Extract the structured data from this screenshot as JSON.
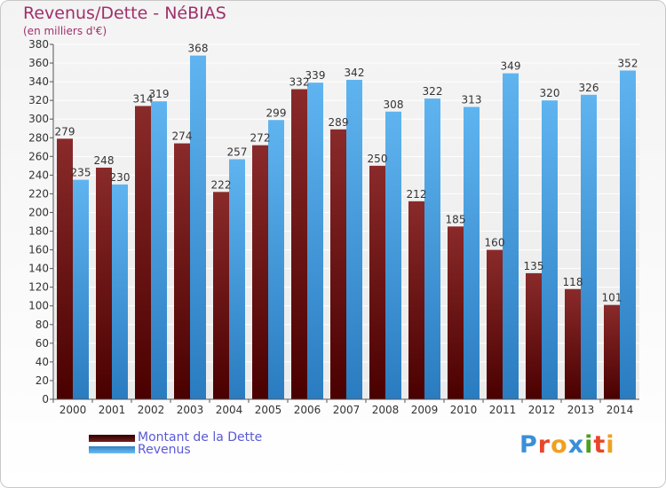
{
  "title": "Revenus/Dette - NéBIAS",
  "subtitle": "(en milliers d'€)",
  "chart_data": {
    "type": "bar",
    "title": "Revenus/Dette - NéBIAS",
    "subtitle": "(en milliers d'€)",
    "xlabel": "",
    "ylabel": "",
    "categories": [
      "2000",
      "2001",
      "2002",
      "2003",
      "2004",
      "2005",
      "2006",
      "2007",
      "2008",
      "2009",
      "2010",
      "2011",
      "2012",
      "2013",
      "2014"
    ],
    "series": [
      {
        "name": "Montant de la Dette",
        "color": "#7a1c1c",
        "values": [
          279,
          248,
          314,
          274,
          222,
          272,
          332,
          289,
          250,
          212,
          185,
          160,
          135,
          118,
          101
        ]
      },
      {
        "name": "Revenus",
        "color": "#4aa3e6",
        "values": [
          235,
          230,
          319,
          368,
          257,
          299,
          339,
          342,
          308,
          322,
          313,
          349,
          320,
          326,
          352
        ]
      }
    ],
    "ylim": [
      0,
      380
    ],
    "yticks": [
      0,
      20,
      40,
      60,
      80,
      100,
      120,
      140,
      160,
      180,
      200,
      220,
      240,
      260,
      280,
      300,
      320,
      340,
      360,
      380
    ],
    "grid": true,
    "legend": "bottom-left"
  },
  "legend": {
    "items": [
      {
        "label": "Montant de la Dette",
        "color": "#7a1c1c"
      },
      {
        "label": "Revenus",
        "color": "#4aa3e6"
      }
    ]
  },
  "logo": {
    "text": "Proxiti"
  }
}
